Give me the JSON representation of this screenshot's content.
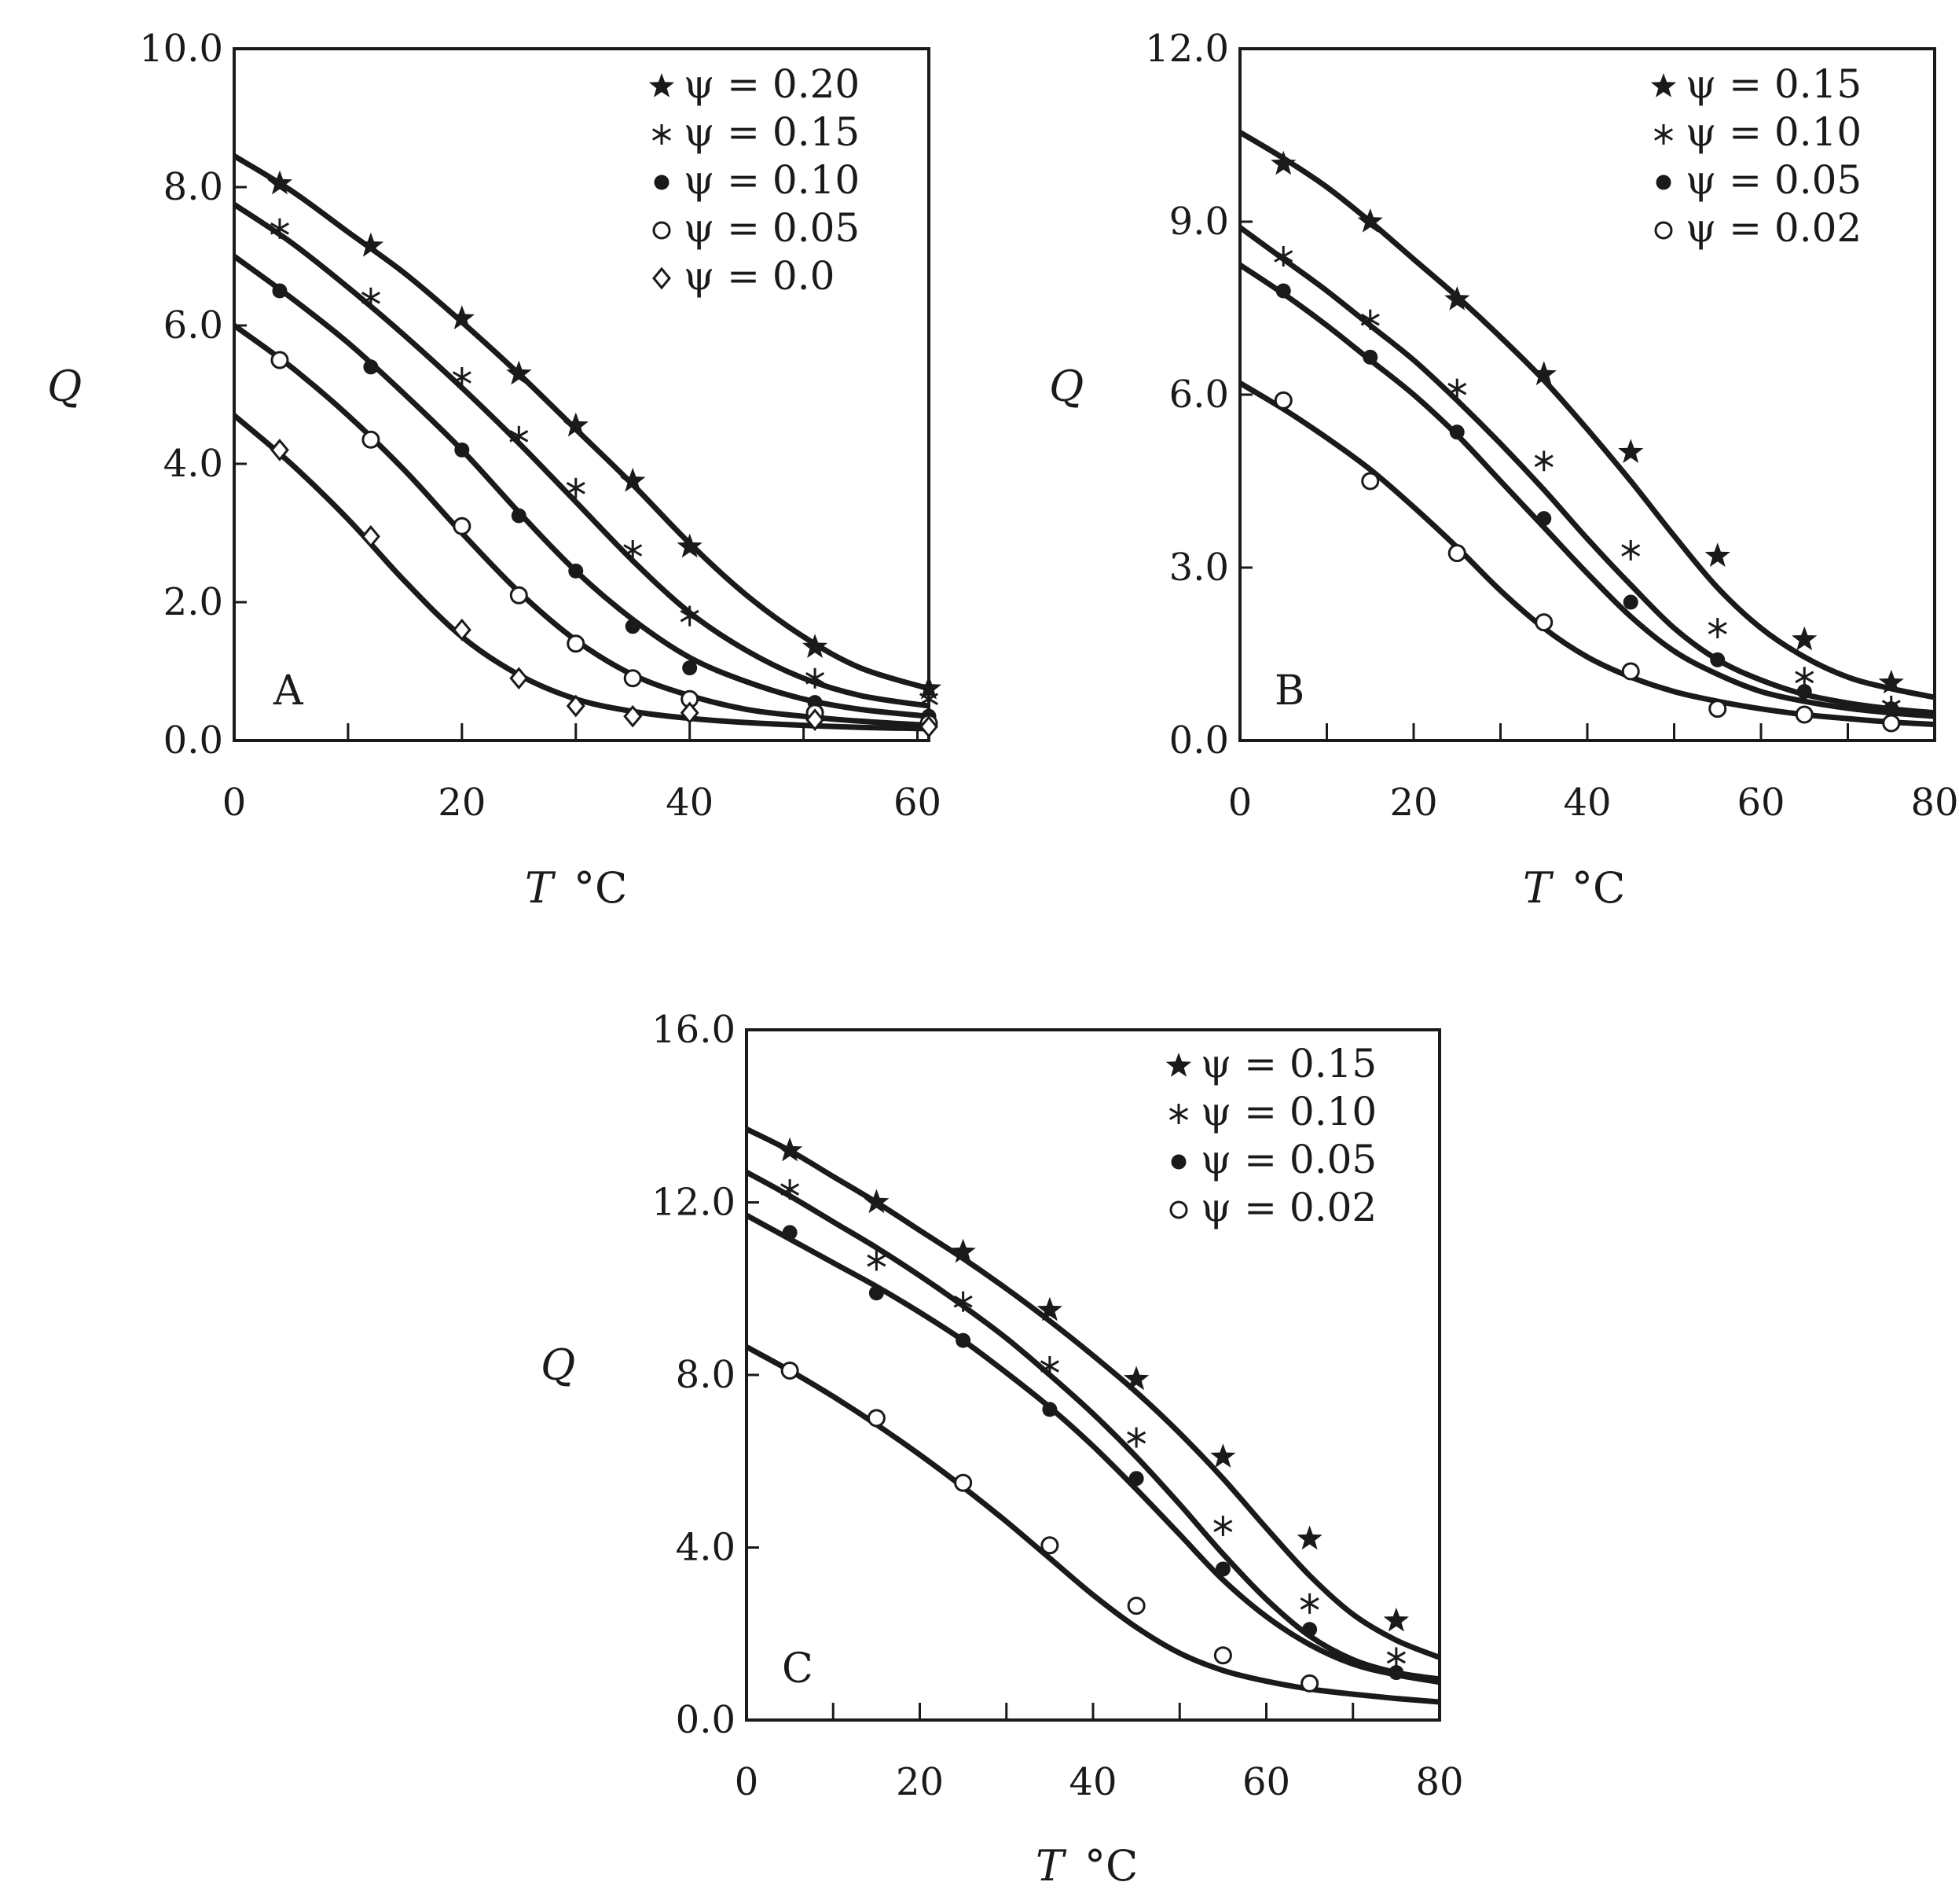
{
  "chart_data": [
    {
      "type": "line",
      "panel_label": "A",
      "ylabel": "Q",
      "xlabel_var": "T",
      "xlabel_unit": "°C",
      "xlim": [
        0,
        61
      ],
      "ylim": [
        0,
        10
      ],
      "xticks": [
        0,
        20,
        40,
        60
      ],
      "xtick_labels": [
        "0",
        "20",
        "40",
        "60"
      ],
      "yticks": [
        0,
        2,
        4,
        6,
        8,
        10
      ],
      "ytick_labels": [
        "0.0",
        "2.0",
        "4.0",
        "6.0",
        "8.0",
        "10.0"
      ],
      "minor_xticks": [
        10,
        30,
        50
      ],
      "legend_position": "top-right",
      "series": [
        {
          "legend": "ψ = 0.20",
          "marker": "star",
          "x": [
            4,
            12,
            20,
            25,
            30,
            35,
            40,
            51,
            61
          ],
          "y": [
            8.05,
            7.15,
            6.1,
            5.3,
            4.55,
            3.75,
            2.8,
            1.35,
            0.75
          ],
          "fit_x": [
            0,
            5,
            10,
            15,
            20,
            25,
            30,
            35,
            40,
            45,
            50,
            55,
            61
          ],
          "fit_y": [
            8.45,
            7.95,
            7.35,
            6.75,
            6.05,
            5.3,
            4.5,
            3.7,
            2.85,
            2.1,
            1.5,
            1.05,
            0.75
          ]
        },
        {
          "legend": "ψ = 0.15",
          "marker": "asterisk",
          "x": [
            4,
            12,
            20,
            25,
            30,
            35,
            40,
            51,
            61
          ],
          "y": [
            7.4,
            6.4,
            5.25,
            4.4,
            3.65,
            2.75,
            1.8,
            0.9,
            0.6
          ],
          "fit_x": [
            0,
            5,
            10,
            15,
            20,
            25,
            30,
            35,
            40,
            45,
            50,
            55,
            61
          ],
          "fit_y": [
            7.75,
            7.2,
            6.55,
            5.85,
            5.1,
            4.3,
            3.45,
            2.6,
            1.85,
            1.3,
            0.9,
            0.65,
            0.5
          ]
        },
        {
          "legend": "ψ = 0.10",
          "marker": "filled-circle",
          "x": [
            4,
            12,
            20,
            25,
            30,
            35,
            40,
            51,
            61
          ],
          "y": [
            6.5,
            5.4,
            4.2,
            3.25,
            2.45,
            1.65,
            1.05,
            0.55,
            0.35
          ],
          "fit_x": [
            0,
            5,
            10,
            15,
            20,
            25,
            30,
            35,
            40,
            45,
            50,
            55,
            61
          ],
          "fit_y": [
            7.0,
            6.4,
            5.75,
            5.0,
            4.2,
            3.3,
            2.45,
            1.75,
            1.2,
            0.85,
            0.6,
            0.45,
            0.35
          ]
        },
        {
          "legend": "ψ = 0.05",
          "marker": "open-circle",
          "x": [
            4,
            12,
            20,
            25,
            30,
            35,
            40,
            51,
            61
          ],
          "y": [
            5.5,
            4.35,
            3.1,
            2.1,
            1.4,
            0.9,
            0.6,
            0.4,
            0.25
          ],
          "fit_x": [
            0,
            5,
            10,
            15,
            20,
            25,
            30,
            35,
            40,
            45,
            50,
            55,
            61
          ],
          "fit_y": [
            6.0,
            5.4,
            4.7,
            3.9,
            3.0,
            2.15,
            1.45,
            0.95,
            0.65,
            0.45,
            0.35,
            0.28,
            0.22
          ]
        },
        {
          "legend": "ψ = 0.0",
          "marker": "open-diamond",
          "x": [
            4,
            12,
            20,
            25,
            30,
            35,
            40,
            51,
            61
          ],
          "y": [
            4.2,
            2.95,
            1.6,
            0.9,
            0.5,
            0.35,
            0.4,
            0.3,
            0.2
          ],
          "fit_x": [
            0,
            5,
            10,
            15,
            20,
            25,
            30,
            35,
            40,
            45,
            50,
            55,
            61
          ],
          "fit_y": [
            4.7,
            4.0,
            3.2,
            2.3,
            1.5,
            0.95,
            0.6,
            0.42,
            0.32,
            0.26,
            0.22,
            0.19,
            0.17
          ]
        }
      ]
    },
    {
      "type": "line",
      "panel_label": "B",
      "ylabel": "Q",
      "xlabel_var": "T",
      "xlabel_unit": "°C",
      "xlim": [
        0,
        80
      ],
      "ylim": [
        0,
        12
      ],
      "xticks": [
        0,
        20,
        40,
        60,
        80
      ],
      "xtick_labels": [
        "0",
        "20",
        "40",
        "60",
        "80"
      ],
      "yticks": [
        0,
        3,
        6,
        9,
        12
      ],
      "ytick_labels": [
        "0.0",
        "3.0",
        "6.0",
        "9.0",
        "12.0"
      ],
      "minor_xticks": [
        10,
        30,
        50,
        70
      ],
      "legend_position": "top-right",
      "series": [
        {
          "legend": "ψ = 0.15",
          "marker": "star",
          "x": [
            5,
            15,
            25,
            35,
            45,
            55,
            65,
            75
          ],
          "y": [
            10.0,
            9.0,
            7.65,
            6.35,
            5.0,
            3.2,
            1.75,
            1.0
          ],
          "fit_x": [
            0,
            5,
            10,
            15,
            20,
            25,
            30,
            35,
            40,
            45,
            50,
            55,
            60,
            65,
            70,
            75,
            80
          ],
          "fit_y": [
            10.55,
            10.1,
            9.6,
            9.0,
            8.35,
            7.7,
            7.0,
            6.25,
            5.4,
            4.5,
            3.55,
            2.65,
            1.95,
            1.45,
            1.1,
            0.9,
            0.75
          ]
        },
        {
          "legend": "ψ = 0.10",
          "marker": "asterisk",
          "x": [
            5,
            15,
            25,
            35,
            45,
            55,
            65,
            75
          ],
          "y": [
            8.4,
            7.3,
            6.1,
            4.85,
            3.3,
            1.95,
            1.1,
            0.6
          ],
          "fit_x": [
            0,
            5,
            10,
            15,
            20,
            25,
            30,
            35,
            40,
            45,
            50,
            55,
            60,
            65,
            70,
            75,
            80
          ],
          "fit_y": [
            8.9,
            8.35,
            7.8,
            7.2,
            6.6,
            5.9,
            5.15,
            4.35,
            3.5,
            2.7,
            1.95,
            1.4,
            1.05,
            0.8,
            0.65,
            0.55,
            0.48
          ]
        },
        {
          "legend": "ψ = 0.05",
          "marker": "filled-circle",
          "x": [
            5,
            15,
            25,
            35,
            45,
            55,
            65,
            75
          ],
          "y": [
            7.8,
            6.65,
            5.35,
            3.85,
            2.4,
            1.4,
            0.85,
            0.55
          ],
          "fit_x": [
            0,
            5,
            10,
            15,
            20,
            25,
            30,
            35,
            40,
            45,
            50,
            55,
            60,
            65,
            70,
            75,
            80
          ],
          "fit_y": [
            8.25,
            7.75,
            7.2,
            6.6,
            6.0,
            5.3,
            4.5,
            3.7,
            2.9,
            2.15,
            1.55,
            1.15,
            0.85,
            0.68,
            0.56,
            0.48,
            0.42
          ]
        },
        {
          "legend": "ψ = 0.02",
          "marker": "open-circle",
          "x": [
            5,
            15,
            25,
            35,
            45,
            55,
            65,
            75
          ],
          "y": [
            5.9,
            4.5,
            3.25,
            2.05,
            1.2,
            0.55,
            0.45,
            0.3
          ],
          "fit_x": [
            0,
            5,
            10,
            15,
            20,
            25,
            30,
            35,
            40,
            45,
            50,
            55,
            60,
            65,
            70,
            75,
            80
          ],
          "fit_y": [
            6.2,
            5.75,
            5.25,
            4.7,
            4.05,
            3.35,
            2.6,
            1.95,
            1.45,
            1.1,
            0.85,
            0.68,
            0.55,
            0.45,
            0.38,
            0.32,
            0.28
          ]
        }
      ]
    },
    {
      "type": "line",
      "panel_label": "C",
      "ylabel": "Q",
      "xlabel_var": "T",
      "xlabel_unit": "°C",
      "xlim": [
        0,
        80
      ],
      "ylim": [
        0,
        16
      ],
      "xticks": [
        0,
        20,
        40,
        60,
        80
      ],
      "xtick_labels": [
        "0",
        "20",
        "40",
        "60",
        "80"
      ],
      "yticks": [
        0,
        4,
        8,
        12,
        16
      ],
      "ytick_labels": [
        "0.0",
        "4.0",
        "8.0",
        "12.0",
        "16.0"
      ],
      "minor_xticks": [
        10,
        30,
        50,
        70
      ],
      "legend_position": "top-right",
      "series": [
        {
          "legend": "ψ = 0.15",
          "marker": "star",
          "x": [
            5,
            15,
            25,
            35,
            45,
            55,
            65,
            75
          ],
          "y": [
            13.2,
            12.0,
            10.85,
            9.5,
            7.9,
            6.1,
            4.2,
            2.3
          ],
          "fit_x": [
            0,
            5,
            10,
            15,
            20,
            25,
            30,
            35,
            40,
            45,
            50,
            55,
            60,
            65,
            70,
            75,
            80
          ],
          "fit_y": [
            13.7,
            13.2,
            12.6,
            12.0,
            11.35,
            10.7,
            10.0,
            9.25,
            8.45,
            7.6,
            6.65,
            5.6,
            4.45,
            3.35,
            2.45,
            1.85,
            1.45
          ]
        },
        {
          "legend": "ψ = 0.10",
          "marker": "asterisk",
          "x": [
            5,
            15,
            25,
            35,
            45,
            55,
            65,
            75
          ],
          "y": [
            12.3,
            10.65,
            9.7,
            8.2,
            6.55,
            4.5,
            2.7,
            1.45
          ],
          "fit_x": [
            0,
            5,
            10,
            15,
            20,
            25,
            30,
            35,
            40,
            45,
            50,
            55,
            60,
            65,
            70,
            75,
            80
          ],
          "fit_y": [
            12.7,
            12.15,
            11.55,
            10.95,
            10.3,
            9.6,
            8.85,
            8.0,
            7.1,
            6.1,
            5.0,
            3.85,
            2.8,
            1.95,
            1.4,
            1.1,
            0.95
          ]
        },
        {
          "legend": "ψ = 0.05",
          "marker": "filled-circle",
          "x": [
            5,
            15,
            25,
            35,
            45,
            55,
            65,
            75
          ],
          "y": [
            11.3,
            9.9,
            8.8,
            7.2,
            5.6,
            3.5,
            2.1,
            1.1
          ],
          "fit_x": [
            0,
            5,
            10,
            15,
            20,
            25,
            30,
            35,
            40,
            45,
            50,
            55,
            60,
            65,
            70,
            75,
            80
          ],
          "fit_y": [
            11.7,
            11.15,
            10.6,
            10.05,
            9.45,
            8.8,
            8.05,
            7.25,
            6.35,
            5.35,
            4.3,
            3.25,
            2.4,
            1.75,
            1.3,
            1.05,
            0.88
          ]
        },
        {
          "legend": "ψ = 0.02",
          "marker": "open-circle",
          "x": [
            5,
            15,
            25,
            35,
            45,
            55,
            65
          ],
          "y": [
            8.1,
            7.0,
            5.5,
            4.05,
            2.65,
            1.5,
            0.85
          ],
          "fit_x": [
            0,
            5,
            10,
            15,
            20,
            25,
            30,
            35,
            40,
            45,
            50,
            55,
            60,
            65,
            70,
            75,
            80
          ],
          "fit_y": [
            8.65,
            8.1,
            7.5,
            6.85,
            6.15,
            5.4,
            4.6,
            3.75,
            2.9,
            2.15,
            1.55,
            1.15,
            0.9,
            0.72,
            0.6,
            0.5,
            0.42
          ]
        }
      ]
    }
  ]
}
